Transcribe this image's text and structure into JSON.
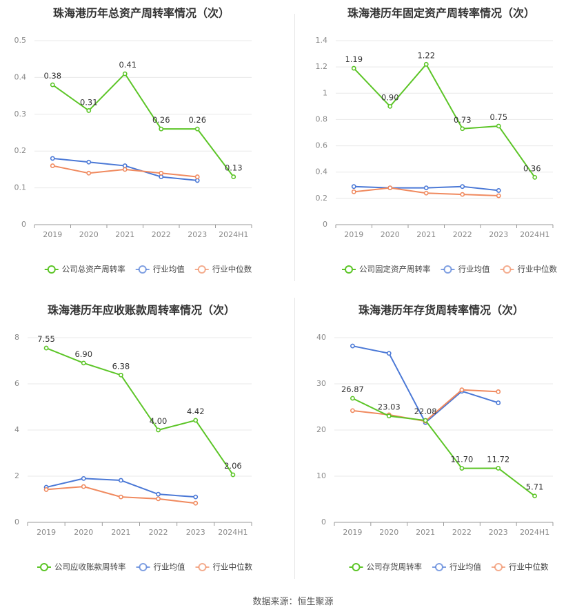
{
  "source": "数据来源：恒生聚源",
  "colors": {
    "company": "#5cc527",
    "industry_avg": "#4a78d6",
    "industry_median": "#f08a5f",
    "grid": "#e8e8e8",
    "axis": "#999999",
    "text": "#444444"
  },
  "legend": {
    "company_marker": "circle",
    "avg_label": "行业均值",
    "median_label": "行业中位数"
  },
  "chart_data": [
    {
      "type": "line",
      "title": "珠海港历年总资产周转率情况（次）",
      "categories": [
        "2019",
        "2020",
        "2021",
        "2022",
        "2023",
        "2024H1"
      ],
      "ylim": [
        0,
        0.5
      ],
      "yticks": [
        "0",
        "0.1",
        "0.2",
        "0.3",
        "0.4",
        "0.5"
      ],
      "ytick_values": [
        0,
        0.1,
        0.2,
        0.3,
        0.4,
        0.5
      ],
      "grid": true,
      "legend_position": "bottom",
      "series": [
        {
          "name": "公司总资产周转率",
          "color": "#5cc527",
          "values": [
            0.38,
            0.31,
            0.41,
            0.26,
            0.26,
            0.13
          ],
          "labels": [
            "0.38",
            "0.31",
            "0.41",
            "0.26",
            "0.26",
            "0.13"
          ]
        },
        {
          "name": "行业均值",
          "color": "#4a78d6",
          "values": [
            0.18,
            0.17,
            0.16,
            0.13,
            0.12,
            null
          ]
        },
        {
          "name": "行业中位数",
          "color": "#f08a5f",
          "values": [
            0.16,
            0.14,
            0.15,
            0.14,
            0.13,
            null
          ]
        }
      ]
    },
    {
      "type": "line",
      "title": "珠海港历年固定资产周转率情况（次）",
      "categories": [
        "2019",
        "2020",
        "2021",
        "2022",
        "2023",
        "2024H1"
      ],
      "ylim": [
        0,
        1.4
      ],
      "yticks": [
        "0",
        "0.2",
        "0.4",
        "0.6",
        "0.8",
        "1",
        "1.2",
        "1.4"
      ],
      "ytick_values": [
        0,
        0.2,
        0.4,
        0.6,
        0.8,
        1,
        1.2,
        1.4
      ],
      "grid": true,
      "legend_position": "bottom",
      "series": [
        {
          "name": "公司固定资产周转率",
          "color": "#5cc527",
          "values": [
            1.19,
            0.9,
            1.22,
            0.73,
            0.75,
            0.36
          ],
          "labels": [
            "1.19",
            "0.90",
            "1.22",
            "0.73",
            "0.75",
            "0.36"
          ]
        },
        {
          "name": "行业均值",
          "color": "#4a78d6",
          "values": [
            0.29,
            0.28,
            0.28,
            0.29,
            0.26,
            null
          ]
        },
        {
          "name": "行业中位数",
          "color": "#f08a5f",
          "values": [
            0.25,
            0.28,
            0.24,
            0.23,
            0.22,
            null
          ]
        }
      ]
    },
    {
      "type": "line",
      "title": "珠海港历年应收账款周转率情况（次）",
      "categories": [
        "2019",
        "2020",
        "2021",
        "2022",
        "2023",
        "2024H1"
      ],
      "ylim": [
        0,
        8
      ],
      "yticks": [
        "0",
        "2",
        "4",
        "6",
        "8"
      ],
      "ytick_values": [
        0,
        2,
        4,
        6,
        8
      ],
      "grid": true,
      "legend_position": "bottom",
      "series": [
        {
          "name": "公司应收账款周转率",
          "color": "#5cc527",
          "values": [
            7.55,
            6.9,
            6.38,
            4.0,
            4.42,
            2.06
          ],
          "labels": [
            "7.55",
            "6.90",
            "6.38",
            "4.00",
            "4.42",
            "2.06"
          ]
        },
        {
          "name": "行业均值",
          "color": "#4a78d6",
          "values": [
            1.52,
            1.9,
            1.82,
            1.22,
            1.1,
            null
          ]
        },
        {
          "name": "行业中位数",
          "color": "#f08a5f",
          "values": [
            1.42,
            1.55,
            1.1,
            1.02,
            0.83,
            null
          ]
        }
      ]
    },
    {
      "type": "line",
      "title": "珠海港历年存货周转率情况（次）",
      "categories": [
        "2019",
        "2020",
        "2021",
        "2022",
        "2023",
        "2024H1"
      ],
      "ylim": [
        0,
        40
      ],
      "yticks": [
        "0",
        "10",
        "20",
        "30",
        "40"
      ],
      "ytick_values": [
        0,
        10,
        20,
        30,
        40
      ],
      "grid": true,
      "legend_position": "bottom",
      "series": [
        {
          "name": "公司存货周转率",
          "color": "#5cc527",
          "values": [
            26.87,
            23.03,
            22.08,
            11.7,
            11.72,
            5.71
          ],
          "labels": [
            "26.87",
            "23.03",
            "22.08",
            "11.70",
            "11.72",
            "5.71"
          ]
        },
        {
          "name": "行业均值",
          "color": "#4a78d6",
          "values": [
            38.2,
            36.6,
            21.6,
            28.4,
            25.9,
            null
          ]
        },
        {
          "name": "行业中位数",
          "color": "#f08a5f",
          "values": [
            24.2,
            23.3,
            21.9,
            28.7,
            28.3,
            null
          ]
        }
      ]
    }
  ]
}
